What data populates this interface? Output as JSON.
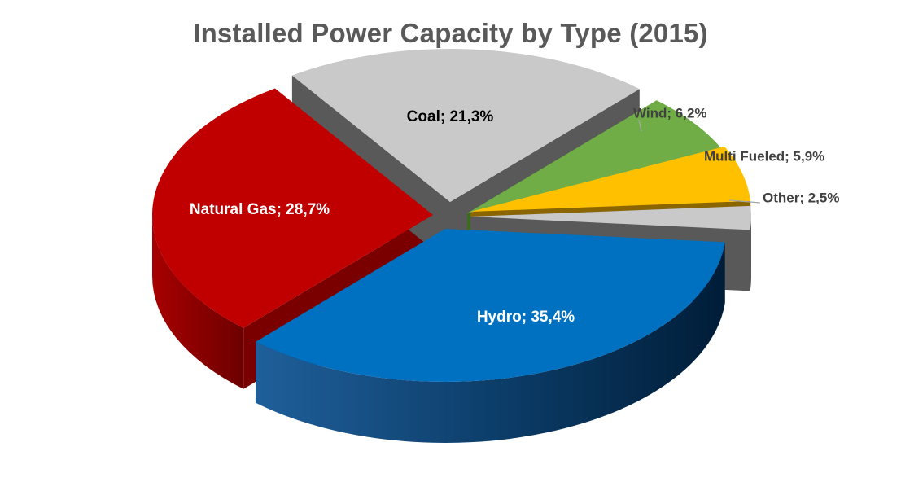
{
  "chart_data": {
    "type": "pie",
    "title": "Installed Power Capacity by Type (2015)",
    "slices": [
      {
        "name": "Hydro",
        "value": 35.4,
        "label": "Hydro; 35,4%",
        "color": "#0070C0",
        "side_color": "#00305a",
        "label_color": "#ffffff",
        "label_pos": "inside"
      },
      {
        "name": "Natural Gas",
        "value": 28.7,
        "label": "Natural Gas; 28,7%",
        "color": "#C00000",
        "side_color": "#7a0000",
        "label_color": "#ffffff",
        "label_pos": "inside"
      },
      {
        "name": "Coal",
        "value": 21.3,
        "label": "Coal; 21,3%",
        "color": "#C9C9C9",
        "side_color": "#595959",
        "label_color": "#000000",
        "label_pos": "inside"
      },
      {
        "name": "Wind",
        "value": 6.2,
        "label": "Wind; 6,2%",
        "color": "#70AD47",
        "side_color": "#3d6b22",
        "label_color": "#404040",
        "label_pos": "outside"
      },
      {
        "name": "Multi Fueled",
        "value": 5.9,
        "label": "Multi Fueled; 5,9%",
        "color": "#FFC000",
        "side_color": "#8a6500",
        "label_color": "#404040",
        "label_pos": "outside"
      },
      {
        "name": "Other",
        "value": 2.5,
        "label": "Other; 2,5%",
        "color": "#C9C9C9",
        "side_color": "#595959",
        "label_color": "#404040",
        "label_pos": "outside"
      }
    ],
    "style": "3d-exploded"
  }
}
